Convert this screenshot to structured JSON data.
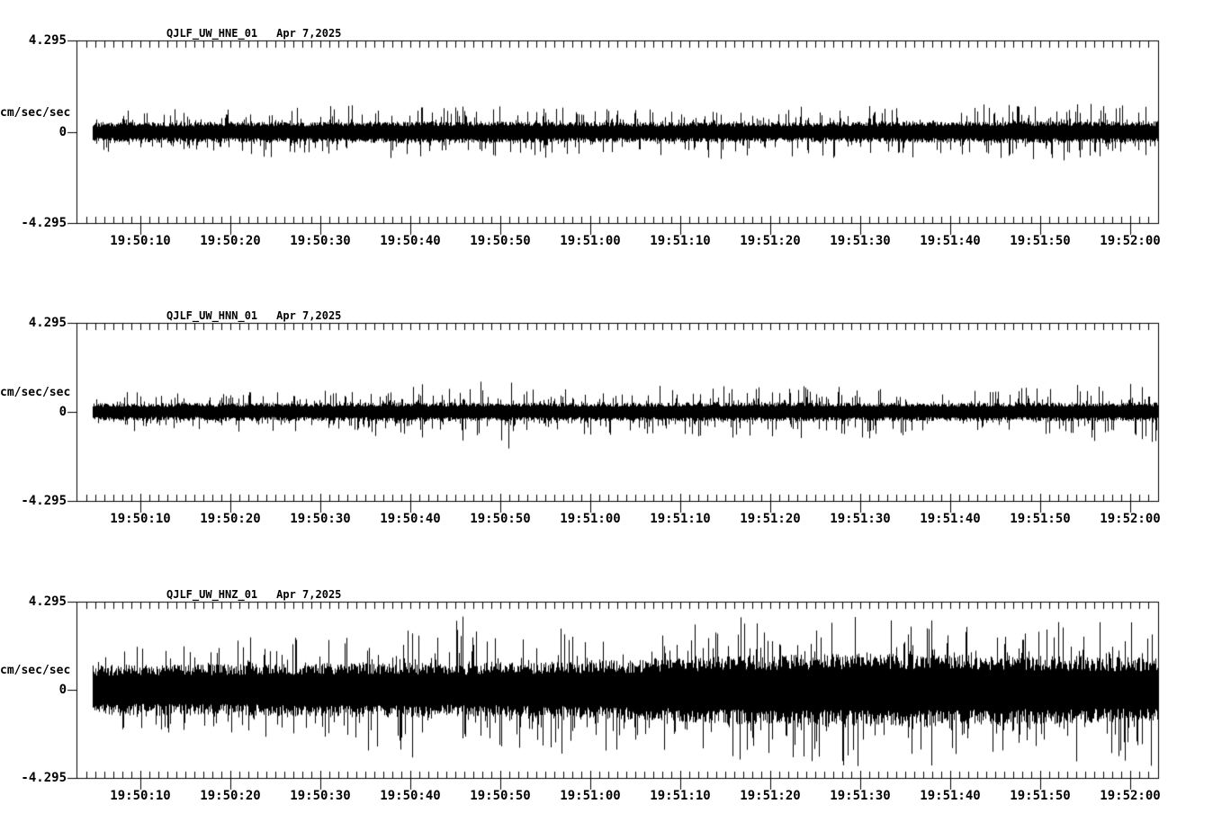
{
  "page": {
    "background": "#ffffff",
    "ink": "#000000"
  },
  "chart_data": {
    "type": "line",
    "kind": "seismogram-noise-traces",
    "num_panels": 3,
    "x_axis": {
      "start_time": "19:50:03",
      "end_time": "19:52:03",
      "major_tick_interval_sec": 10,
      "minor_tick_interval_sec": 1,
      "tick_labels": [
        "19:50:10",
        "19:50:20",
        "19:50:30",
        "19:50:40",
        "19:50:50",
        "19:51:00",
        "19:51:10",
        "19:51:20",
        "19:51:30",
        "19:51:40",
        "19:51:50",
        "19:52:00"
      ]
    },
    "y_axis": {
      "label": "cm/sec/sec",
      "max": 4.295,
      "min": -4.295,
      "tick_labels": [
        "4.295",
        "0",
        "-4.295"
      ],
      "y_max_label": "4.295",
      "y_zero_label": "0",
      "y_min_label": "-4.295"
    },
    "charts": [
      {
        "station": "QJLF_UW_HNE_01",
        "date": "Apr 7,2025",
        "units": "cm/sec/sec",
        "ylim": [
          -4.295,
          4.295
        ],
        "seed": 101,
        "amplitude_envelope": {
          "description": "[seconds_from_trace_start, noise_band_halfwidth, peak_spike_amplitude] in cm/sec/sec",
          "keyframes": [
            [
              0,
              0.36,
              1.0
            ],
            [
              40,
              0.4,
              1.35
            ],
            [
              55,
              0.38,
              1.15
            ],
            [
              80,
              0.36,
              1.2
            ],
            [
              100,
              0.4,
              1.3
            ],
            [
              118,
              0.4,
              1.25
            ]
          ]
        }
      },
      {
        "station": "QJLF_UW_HNN_01",
        "date": "Apr 7,2025",
        "units": "cm/sec/sec",
        "ylim": [
          -4.295,
          4.295
        ],
        "seed": 202,
        "amplitude_envelope": {
          "description": "[seconds_from_trace_start, noise_band_halfwidth, peak_spike_amplitude] in cm/sec/sec",
          "keyframes": [
            [
              0,
              0.33,
              0.9
            ],
            [
              30,
              0.35,
              1.05
            ],
            [
              46,
              0.36,
              1.9
            ],
            [
              50,
              0.34,
              1.0
            ],
            [
              70,
              0.36,
              1.3
            ],
            [
              100,
              0.34,
              1.1
            ],
            [
              118,
              0.36,
              1.6
            ]
          ]
        }
      },
      {
        "station": "QJLF_UW_HNZ_01",
        "date": "Apr 7,2025",
        "units": "cm/sec/sec",
        "ylim": [
          -4.295,
          4.295
        ],
        "seed": 303,
        "amplitude_envelope": {
          "description": "[seconds_from_trace_start, noise_band_halfwidth, peak_spike_amplitude] in cm/sec/sec",
          "keyframes": [
            [
              0,
              0.95,
              2.0
            ],
            [
              20,
              1.0,
              2.4
            ],
            [
              38,
              1.05,
              3.2
            ],
            [
              40,
              1.0,
              3.9
            ],
            [
              45,
              1.05,
              2.8
            ],
            [
              52,
              1.1,
              3.3
            ],
            [
              60,
              1.15,
              2.9
            ],
            [
              70,
              1.3,
              3.5
            ],
            [
              78,
              1.35,
              3.9
            ],
            [
              88,
              1.4,
              3.8
            ],
            [
              95,
              1.35,
              3.6
            ],
            [
              105,
              1.3,
              3.4
            ],
            [
              112,
              1.25,
              3.5
            ],
            [
              118,
              1.25,
              3.6
            ]
          ]
        }
      }
    ]
  }
}
